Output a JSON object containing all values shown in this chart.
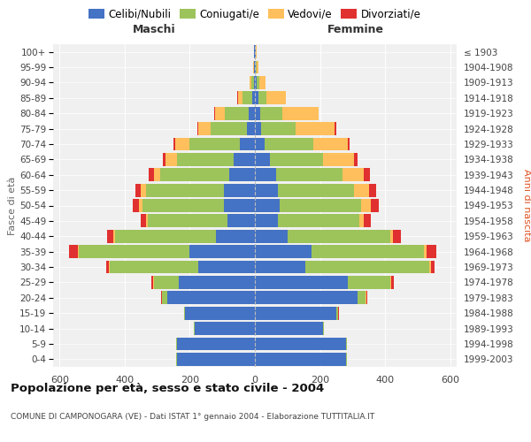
{
  "age_groups": [
    "0-4",
    "5-9",
    "10-14",
    "15-19",
    "20-24",
    "25-29",
    "30-34",
    "35-39",
    "40-44",
    "45-49",
    "50-54",
    "55-59",
    "60-64",
    "65-69",
    "70-74",
    "75-79",
    "80-84",
    "85-89",
    "90-94",
    "95-99",
    "100+"
  ],
  "birth_years": [
    "1999-2003",
    "1994-1998",
    "1989-1993",
    "1984-1988",
    "1979-1983",
    "1974-1978",
    "1969-1973",
    "1964-1968",
    "1959-1963",
    "1954-1958",
    "1949-1953",
    "1944-1948",
    "1939-1943",
    "1934-1938",
    "1929-1933",
    "1924-1928",
    "1919-1923",
    "1914-1918",
    "1909-1913",
    "1904-1908",
    "≤ 1903"
  ],
  "maschi": {
    "celibi": [
      240,
      240,
      185,
      215,
      270,
      235,
      175,
      200,
      120,
      85,
      95,
      95,
      80,
      65,
      45,
      25,
      18,
      8,
      4,
      2,
      2
    ],
    "coniugati": [
      2,
      2,
      2,
      3,
      15,
      75,
      270,
      340,
      310,
      245,
      250,
      240,
      210,
      175,
      155,
      110,
      75,
      30,
      8,
      2,
      1
    ],
    "vedovi": [
      0,
      0,
      0,
      0,
      1,
      2,
      3,
      5,
      5,
      5,
      10,
      15,
      20,
      35,
      45,
      40,
      30,
      15,
      5,
      1,
      0
    ],
    "divorziati": [
      0,
      0,
      0,
      0,
      2,
      5,
      10,
      25,
      20,
      15,
      20,
      18,
      15,
      8,
      5,
      3,
      2,
      1,
      0,
      0,
      0
    ]
  },
  "femmine": {
    "nubili": [
      280,
      280,
      210,
      250,
      315,
      285,
      155,
      175,
      100,
      70,
      75,
      70,
      65,
      45,
      30,
      20,
      15,
      10,
      5,
      3,
      2
    ],
    "coniugate": [
      2,
      2,
      2,
      5,
      25,
      130,
      380,
      345,
      315,
      250,
      250,
      235,
      205,
      165,
      150,
      105,
      70,
      25,
      8,
      2,
      1
    ],
    "vedove": [
      0,
      0,
      0,
      1,
      2,
      3,
      5,
      8,
      10,
      15,
      30,
      45,
      65,
      95,
      105,
      120,
      110,
      60,
      20,
      5,
      2
    ],
    "divorziate": [
      0,
      0,
      0,
      1,
      3,
      8,
      12,
      30,
      25,
      20,
      25,
      22,
      18,
      10,
      6,
      4,
      2,
      1,
      0,
      0,
      0
    ]
  },
  "colors": {
    "celibi": "#4472C4",
    "coniugati": "#9DC35B",
    "vedovi": "#FFBF5C",
    "divorziati": "#E03030"
  },
  "xlim": 620,
  "title": "Popolazione per età, sesso e stato civile - 2004",
  "subtitle": "COMUNE DI CAMPONOGARA (VE) - Dati ISTAT 1° gennaio 2004 - Elaborazione TUTTITALIA.IT",
  "ylabel_left": "Fasce di età",
  "ylabel_right": "Anni di nascita",
  "xlabel_maschi": "Maschi",
  "xlabel_femmine": "Femmine",
  "bg_color": "#f5f5f5"
}
